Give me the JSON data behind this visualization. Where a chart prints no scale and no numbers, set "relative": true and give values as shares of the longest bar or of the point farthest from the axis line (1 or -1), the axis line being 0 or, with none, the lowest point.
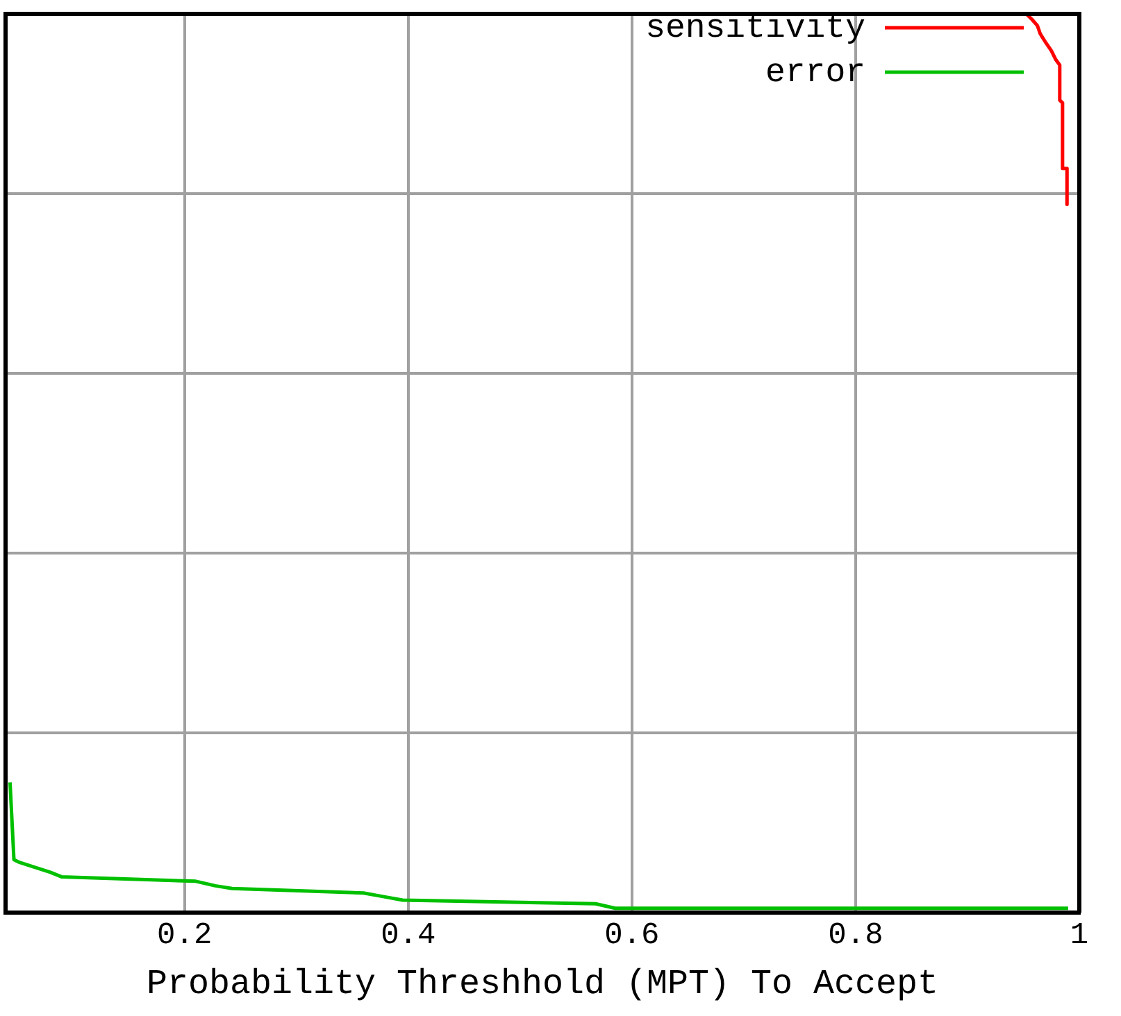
{
  "chart_data": {
    "type": "line",
    "xlabel": "Probability Threshhold (MPT) To Accept",
    "relative": true,
    "xlim": [
      0.04,
      1
    ],
    "xticks": [
      0.2,
      0.4,
      0.6,
      0.8,
      1
    ],
    "grid": true,
    "legend": "top right",
    "marker": "none",
    "line_style": "solid",
    "series": [
      {
        "name": "sensitivity",
        "color": "#ff0000",
        "x": [
          0.9525,
          0.9575,
          0.9625,
          0.965,
          0.97,
          0.975,
          0.979,
          0.9825,
          0.9825,
          0.985,
          0.985,
          0.989,
          0.989
        ],
        "values": [
          1,
          0.994,
          0.987,
          0.978,
          0.968,
          0.959,
          0.949,
          0.943,
          0.904,
          0.901,
          0.828,
          0.828,
          0.788
        ]
      },
      {
        "name": "error",
        "color": "#00c000",
        "x": [
          0.044,
          0.0475,
          0.0525,
          0.065,
          0.08,
          0.09,
          0.21,
          0.2275,
          0.2425,
          0.36,
          0.3775,
          0.395,
          0.5675,
          0.585,
          0.99
        ],
        "values": [
          0.145,
          0.059,
          0.056,
          0.051,
          0.045,
          0.04,
          0.035,
          0.03,
          0.027,
          0.022,
          0.018,
          0.014,
          0.01,
          0.005,
          0.005
        ]
      }
    ]
  }
}
